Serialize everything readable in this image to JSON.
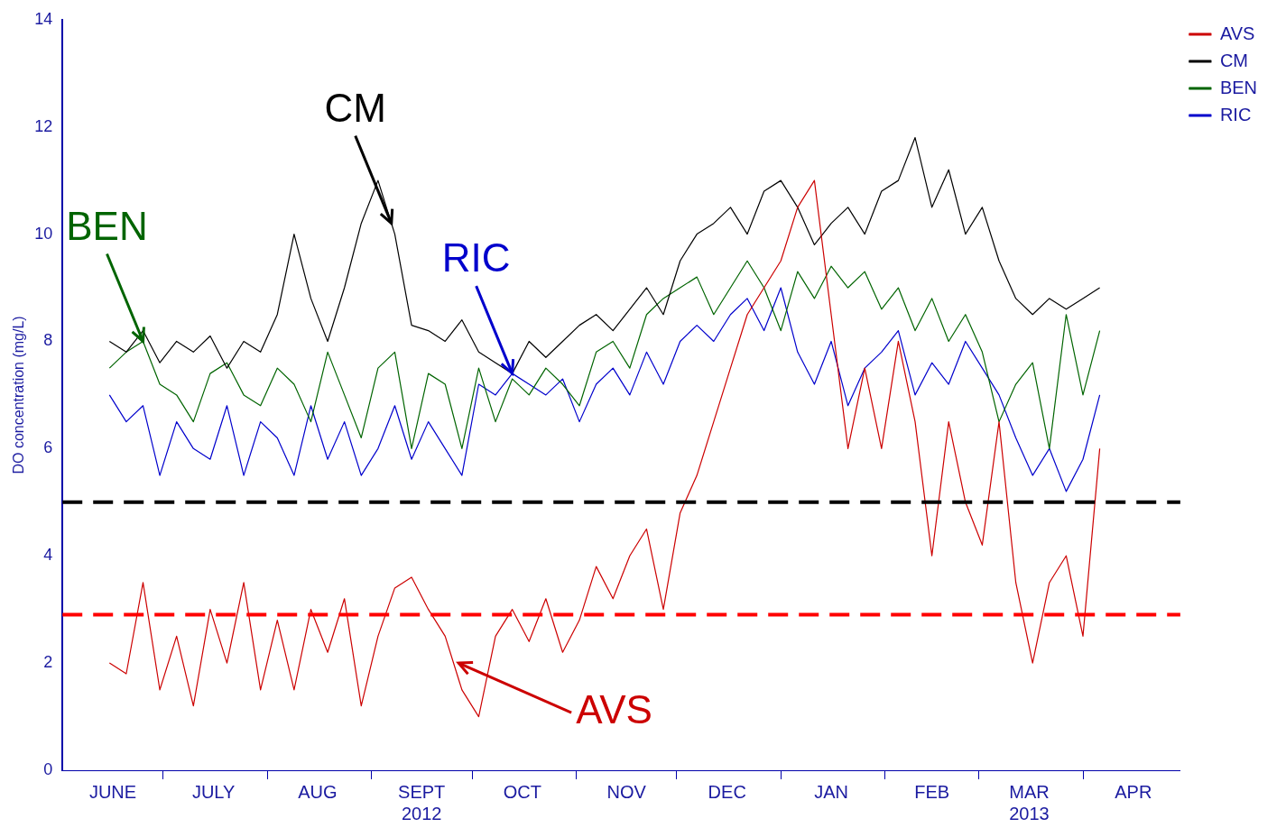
{
  "chart_data": {
    "type": "line",
    "ylabel": "DO concentration (mg/L)",
    "x": [
      "2012-06-15",
      "2012-06-20",
      "2012-06-25",
      "2012-06-30",
      "2012-07-05",
      "2012-07-10",
      "2012-07-15",
      "2012-07-20",
      "2012-07-25",
      "2012-07-30",
      "2012-08-04",
      "2012-08-09",
      "2012-08-14",
      "2012-08-19",
      "2012-08-24",
      "2012-08-29",
      "2012-09-03",
      "2012-09-08",
      "2012-09-13",
      "2012-09-18",
      "2012-09-23",
      "2012-09-28",
      "2012-10-03",
      "2012-10-08",
      "2012-10-13",
      "2012-10-18",
      "2012-10-23",
      "2012-10-28",
      "2012-11-02",
      "2012-11-07",
      "2012-11-12",
      "2012-11-17",
      "2012-11-22",
      "2012-11-27",
      "2012-12-02",
      "2012-12-07",
      "2012-12-12",
      "2012-12-17",
      "2012-12-22",
      "2012-12-27",
      "2013-01-01",
      "2013-01-06",
      "2013-01-11",
      "2013-01-16",
      "2013-01-21",
      "2013-01-26",
      "2013-01-31",
      "2013-02-05",
      "2013-02-10",
      "2013-02-15",
      "2013-02-20",
      "2013-02-25",
      "2013-03-02",
      "2013-03-07",
      "2013-03-12",
      "2013-03-17",
      "2013-03-22",
      "2013-03-27",
      "2013-04-01",
      "2013-04-06"
    ],
    "series": [
      {
        "name": "AVS",
        "color": "#cc0000",
        "values": [
          2.0,
          1.8,
          3.5,
          1.5,
          2.5,
          1.2,
          3.0,
          2.0,
          3.5,
          1.5,
          2.8,
          1.5,
          3.0,
          2.2,
          3.2,
          1.2,
          2.5,
          3.4,
          3.6,
          3.0,
          2.5,
          1.5,
          1.0,
          2.5,
          3.0,
          2.4,
          3.2,
          2.2,
          2.8,
          3.8,
          3.2,
          4.0,
          4.5,
          3.0,
          4.8,
          5.5,
          6.5,
          7.5,
          8.5,
          9.0,
          9.5,
          10.5,
          11.0,
          8.5,
          6.0,
          7.5,
          6.0,
          8.0,
          6.5,
          4.0,
          6.5,
          5.0,
          4.2,
          6.5,
          3.5,
          2.0,
          3.5,
          4.0,
          2.5,
          6.0
        ]
      },
      {
        "name": "CM",
        "color": "#000000",
        "values": [
          8.0,
          7.8,
          8.2,
          7.6,
          8.0,
          7.8,
          8.1,
          7.5,
          8.0,
          7.8,
          8.5,
          10.0,
          8.8,
          8.0,
          9.0,
          10.2,
          11.0,
          10.0,
          8.3,
          8.2,
          8.0,
          8.4,
          7.8,
          7.6,
          7.4,
          8.0,
          7.7,
          8.0,
          8.3,
          8.5,
          8.2,
          8.6,
          9.0,
          8.5,
          9.5,
          10.0,
          10.2,
          10.5,
          10.0,
          10.8,
          11.0,
          10.5,
          9.8,
          10.2,
          10.5,
          10.0,
          10.8,
          11.0,
          11.8,
          10.5,
          11.2,
          10.0,
          10.5,
          9.5,
          8.8,
          8.5,
          8.8,
          8.6,
          8.8,
          9.0
        ]
      },
      {
        "name": "BEN",
        "color": "#006400",
        "values": [
          7.5,
          7.8,
          8.0,
          7.2,
          7.0,
          6.5,
          7.4,
          7.6,
          7.0,
          6.8,
          7.5,
          7.2,
          6.5,
          7.8,
          7.0,
          6.2,
          7.5,
          7.8,
          6.0,
          7.4,
          7.2,
          6.0,
          7.5,
          6.5,
          7.3,
          7.0,
          7.5,
          7.2,
          6.8,
          7.8,
          8.0,
          7.5,
          8.5,
          8.8,
          9.0,
          9.2,
          8.5,
          9.0,
          9.5,
          9.0,
          8.2,
          9.3,
          8.8,
          9.4,
          9.0,
          9.3,
          8.6,
          9.0,
          8.2,
          8.8,
          8.0,
          8.5,
          7.8,
          6.5,
          7.2,
          7.6,
          6.0,
          8.5,
          7.0,
          8.2
        ]
      },
      {
        "name": "RIC",
        "color": "#0000cc",
        "values": [
          7.0,
          6.5,
          6.8,
          5.5,
          6.5,
          6.0,
          5.8,
          6.8,
          5.5,
          6.5,
          6.2,
          5.5,
          6.8,
          5.8,
          6.5,
          5.5,
          6.0,
          6.8,
          5.8,
          6.5,
          6.0,
          5.5,
          7.2,
          7.0,
          7.4,
          7.2,
          7.0,
          7.3,
          6.5,
          7.2,
          7.5,
          7.0,
          7.8,
          7.2,
          8.0,
          8.3,
          8.0,
          8.5,
          8.8,
          8.2,
          9.0,
          7.8,
          7.2,
          8.0,
          6.8,
          7.5,
          7.8,
          8.2,
          7.0,
          7.6,
          7.2,
          8.0,
          7.5,
          7.0,
          6.2,
          5.5,
          6.0,
          5.2,
          5.8,
          7.0
        ]
      }
    ],
    "xlim": [
      "2012-06-01",
      "2013-04-30"
    ],
    "xticks": [
      {
        "value": "2012-06-16",
        "label": "JUNE"
      },
      {
        "value": "2012-07-01",
        "label": null
      },
      {
        "value": "2012-07-16",
        "label": "JULY"
      },
      {
        "value": "2012-08-01",
        "label": null
      },
      {
        "value": "2012-08-16",
        "label": "AUG"
      },
      {
        "value": "2012-09-01",
        "label": null
      },
      {
        "value": "2012-09-16",
        "label": "SEPT\n2012"
      },
      {
        "value": "2012-10-01",
        "label": null
      },
      {
        "value": "2012-10-16",
        "label": "OCT"
      },
      {
        "value": "2012-11-01",
        "label": null
      },
      {
        "value": "2012-11-16",
        "label": "NOV"
      },
      {
        "value": "2012-12-01",
        "label": null
      },
      {
        "value": "2012-12-16",
        "label": "DEC"
      },
      {
        "value": "2013-01-01",
        "label": null
      },
      {
        "value": "2013-01-16",
        "label": "JAN"
      },
      {
        "value": "2013-02-01",
        "label": null
      },
      {
        "value": "2013-02-15",
        "label": "FEB"
      },
      {
        "value": "2013-03-01",
        "label": null
      },
      {
        "value": "2013-03-16",
        "label": "MAR\n2013"
      },
      {
        "value": "2013-04-01",
        "label": null
      },
      {
        "value": "2013-04-16",
        "label": "APR"
      }
    ],
    "ylim": [
      0,
      14
    ],
    "yticks": [
      0,
      2,
      4,
      6,
      8,
      10,
      12,
      14
    ],
    "grid": false,
    "legend": "top right",
    "marker": "none",
    "line_style": "solid",
    "ref_lines": [
      {
        "axis": "y",
        "value": 5,
        "color": "#000000",
        "line_style": "dashed"
      },
      {
        "axis": "y",
        "value": 2.9,
        "color": "#ff0000",
        "line_style": "dashed"
      }
    ],
    "annotations": [
      {
        "text": "AVS",
        "x": "2012-09-27",
        "y": 2.0
      },
      {
        "text": "CM",
        "x": "2012-09-07",
        "y": 10.2
      },
      {
        "text": "BEN",
        "x": "2012-06-25",
        "y": 8.0
      },
      {
        "text": "RIC",
        "x": "2012-10-13",
        "y": 7.4
      }
    ]
  }
}
